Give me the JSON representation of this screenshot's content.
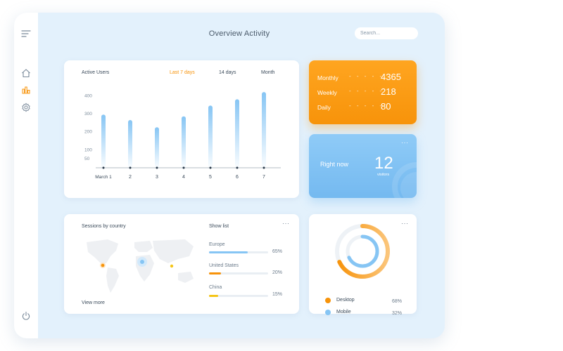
{
  "header": {
    "title": "Overview Activity",
    "search_placeholder": "Search..."
  },
  "sidebar": {
    "items": [
      {
        "name": "menu",
        "icon": "menu-icon"
      },
      {
        "name": "home",
        "icon": "home-icon"
      },
      {
        "name": "stats",
        "icon": "bar-chart-icon",
        "active": true
      },
      {
        "name": "settings",
        "icon": "gear-icon"
      },
      {
        "name": "power",
        "icon": "power-icon"
      }
    ]
  },
  "active_users": {
    "title": "Active Users",
    "tabs": [
      {
        "label": "Last 7 days",
        "active": true
      },
      {
        "label": "14 days"
      },
      {
        "label": "Month"
      }
    ]
  },
  "chart_data": {
    "type": "bar",
    "categories": [
      "March 1",
      "2",
      "3",
      "4",
      "5",
      "6",
      "7"
    ],
    "values": [
      295,
      265,
      225,
      285,
      345,
      380,
      420
    ],
    "yticks": [
      50,
      100,
      200,
      300,
      400
    ],
    "ylim": [
      0,
      440
    ]
  },
  "stats": {
    "rows": [
      {
        "label": "Monthly",
        "dots": "- - - - -",
        "value": "4365"
      },
      {
        "label": "Weekly",
        "dots": "- - - - -",
        "value": "218"
      },
      {
        "label": "Daily",
        "dots": "- - - - -",
        "value": "80"
      }
    ]
  },
  "right_now": {
    "label": "Right now",
    "value": "12",
    "unit": "visitors",
    "more": "···"
  },
  "sessions": {
    "title": "Sessions by country",
    "show_list": "Show list",
    "view_more": "View more",
    "more": "···",
    "countries": [
      {
        "name": "Europe",
        "percent": "65%",
        "value": 65,
        "color": "#86c5f4"
      },
      {
        "name": "United States",
        "percent": "20%",
        "value": 20,
        "color": "#f7930a"
      },
      {
        "name": "China",
        "percent": "15%",
        "value": 15,
        "color": "#f5c518"
      }
    ]
  },
  "devices": {
    "more": "···",
    "items": [
      {
        "label": "Desktop",
        "percent": "68%",
        "value": 68,
        "color": "#f7930a"
      },
      {
        "label": "Mobile",
        "percent": "32%",
        "value": 32,
        "color": "#86c5f4"
      }
    ]
  },
  "colors": {
    "accent_orange": "#f7930a",
    "accent_blue": "#86c5f4",
    "background": "#e3f1fc"
  }
}
